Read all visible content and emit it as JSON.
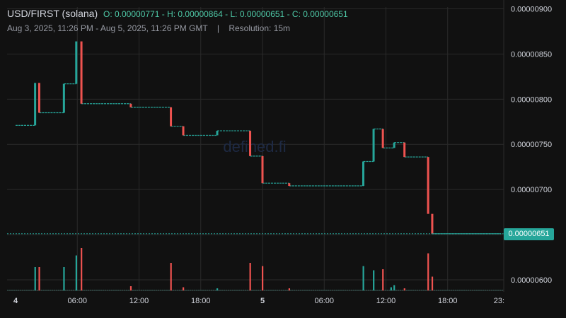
{
  "header": {
    "pair": "USD/FIRST (solana)",
    "open": "O: 0.00000771",
    "high": "H: 0.00000864",
    "low": "L: 0.00000651",
    "close": "C: 0.00000651",
    "range": "Aug 3, 2025, 11:26 PM - Aug 5, 2025, 11:26 PM GMT",
    "separator": "|",
    "resolution": "Resolution: 15m"
  },
  "watermark": "defined.fi",
  "last_price_label": "0.00000651",
  "colors": {
    "up": "#26a69a",
    "down": "#ef5350",
    "background": "#111111",
    "grid": "#2a2a2a",
    "axis_text": "#d1d4dc"
  },
  "chart_data": {
    "type": "candlestick",
    "y_axis": {
      "position": "right",
      "ylim": [
        5.89e-06,
        9.02e-06
      ],
      "ticks": [
        6e-06,
        6.5e-06,
        7e-06,
        7.5e-06,
        8e-06,
        8.5e-06,
        9e-06
      ],
      "tick_labels": [
        "0.00000600",
        "",
        "0.00000700",
        "0.00000750",
        "0.00000800",
        "0.00000850",
        "0.00000900"
      ]
    },
    "x_axis": {
      "xlim_hours": [
        0,
        47.2
      ],
      "ticks_hours": [
        0,
        6,
        12,
        18,
        24,
        30,
        36,
        42,
        47
      ],
      "tick_labels": [
        "4",
        "06:00",
        "12:00",
        "18:00",
        "5",
        "06:00",
        "12:00",
        "18:00",
        "23:"
      ]
    },
    "grid": true,
    "last_price": 6.51e-06,
    "candles": [
      {
        "t": 1.9,
        "o": 7.71e-06,
        "c": 8.18e-06
      },
      {
        "t": 2.3,
        "o": 8.18e-06,
        "c": 7.85e-06
      },
      {
        "t": 4.7,
        "o": 7.85e-06,
        "c": 8.17e-06
      },
      {
        "t": 5.9,
        "o": 8.17e-06,
        "c": 8.64e-06
      },
      {
        "t": 6.4,
        "o": 8.64e-06,
        "c": 7.95e-06
      },
      {
        "t": 11.2,
        "o": 7.95e-06,
        "c": 7.91e-06
      },
      {
        "t": 15.1,
        "o": 7.91e-06,
        "c": 7.7e-06
      },
      {
        "t": 16.3,
        "o": 7.7e-06,
        "c": 7.6e-06
      },
      {
        "t": 19.6,
        "o": 7.6e-06,
        "c": 7.65e-06
      },
      {
        "t": 22.8,
        "o": 7.65e-06,
        "c": 7.37e-06
      },
      {
        "t": 24.0,
        "o": 7.37e-06,
        "c": 7.07e-06
      },
      {
        "t": 26.6,
        "o": 7.07e-06,
        "c": 7.04e-06
      },
      {
        "t": 33.8,
        "o": 7.04e-06,
        "c": 7.31e-06
      },
      {
        "t": 34.8,
        "o": 7.31e-06,
        "c": 7.67e-06
      },
      {
        "t": 35.7,
        "o": 7.67e-06,
        "c": 7.46e-06
      },
      {
        "t": 36.8,
        "o": 7.46e-06,
        "c": 7.52e-06
      },
      {
        "t": 37.8,
        "o": 7.52e-06,
        "c": 7.36e-06
      },
      {
        "t": 40.1,
        "o": 7.36e-06,
        "c": 6.73e-06
      },
      {
        "t": 40.5,
        "o": 6.73e-06,
        "c": 6.51e-06
      }
    ],
    "flat_segments": [
      {
        "t0": 0,
        "t1": 1.9,
        "v": 7.71e-06
      },
      {
        "t0": 2.3,
        "t1": 4.7,
        "v": 7.85e-06
      },
      {
        "t0": 4.7,
        "t1": 5.9,
        "v": 8.17e-06
      },
      {
        "t0": 6.4,
        "t1": 11.2,
        "v": 7.95e-06
      },
      {
        "t0": 11.2,
        "t1": 15.1,
        "v": 7.91e-06
      },
      {
        "t0": 15.1,
        "t1": 16.3,
        "v": 7.7e-06
      },
      {
        "t0": 16.3,
        "t1": 19.6,
        "v": 7.6e-06
      },
      {
        "t0": 19.6,
        "t1": 22.8,
        "v": 7.65e-06
      },
      {
        "t0": 22.8,
        "t1": 24.0,
        "v": 7.37e-06
      },
      {
        "t0": 24.0,
        "t1": 26.6,
        "v": 7.07e-06
      },
      {
        "t0": 26.6,
        "t1": 33.8,
        "v": 7.04e-06
      },
      {
        "t0": 33.8,
        "t1": 34.8,
        "v": 7.31e-06
      },
      {
        "t0": 34.8,
        "t1": 35.7,
        "v": 7.67e-06
      },
      {
        "t0": 35.7,
        "t1": 36.8,
        "v": 7.46e-06
      },
      {
        "t0": 36.8,
        "t1": 37.8,
        "v": 7.52e-06
      },
      {
        "t0": 37.8,
        "t1": 40.1,
        "v": 7.36e-06
      },
      {
        "t0": 40.5,
        "t1": 47.2,
        "v": 6.51e-06
      }
    ],
    "volume_spikes": [
      {
        "t": 1.9,
        "v": 0.22,
        "dir": "up"
      },
      {
        "t": 2.3,
        "v": 0.22,
        "dir": "down"
      },
      {
        "t": 4.7,
        "v": 0.22,
        "dir": "up"
      },
      {
        "t": 5.9,
        "v": 0.33,
        "dir": "up"
      },
      {
        "t": 6.4,
        "v": 0.4,
        "dir": "down"
      },
      {
        "t": 11.2,
        "v": 0.04,
        "dir": "down"
      },
      {
        "t": 15.1,
        "v": 0.26,
        "dir": "down"
      },
      {
        "t": 16.3,
        "v": 0.03,
        "dir": "down"
      },
      {
        "t": 19.6,
        "v": 0.02,
        "dir": "up"
      },
      {
        "t": 22.8,
        "v": 0.26,
        "dir": "down"
      },
      {
        "t": 24.0,
        "v": 0.23,
        "dir": "down"
      },
      {
        "t": 26.6,
        "v": 0.02,
        "dir": "down"
      },
      {
        "t": 33.8,
        "v": 0.23,
        "dir": "up"
      },
      {
        "t": 34.8,
        "v": 0.19,
        "dir": "up"
      },
      {
        "t": 35.7,
        "v": 0.2,
        "dir": "down"
      },
      {
        "t": 36.5,
        "v": 0.03,
        "dir": "up"
      },
      {
        "t": 36.8,
        "v": 0.05,
        "dir": "up"
      },
      {
        "t": 37.8,
        "v": 0.02,
        "dir": "down"
      },
      {
        "t": 40.1,
        "v": 0.35,
        "dir": "down"
      },
      {
        "t": 40.5,
        "v": 0.13,
        "dir": "down"
      }
    ]
  }
}
